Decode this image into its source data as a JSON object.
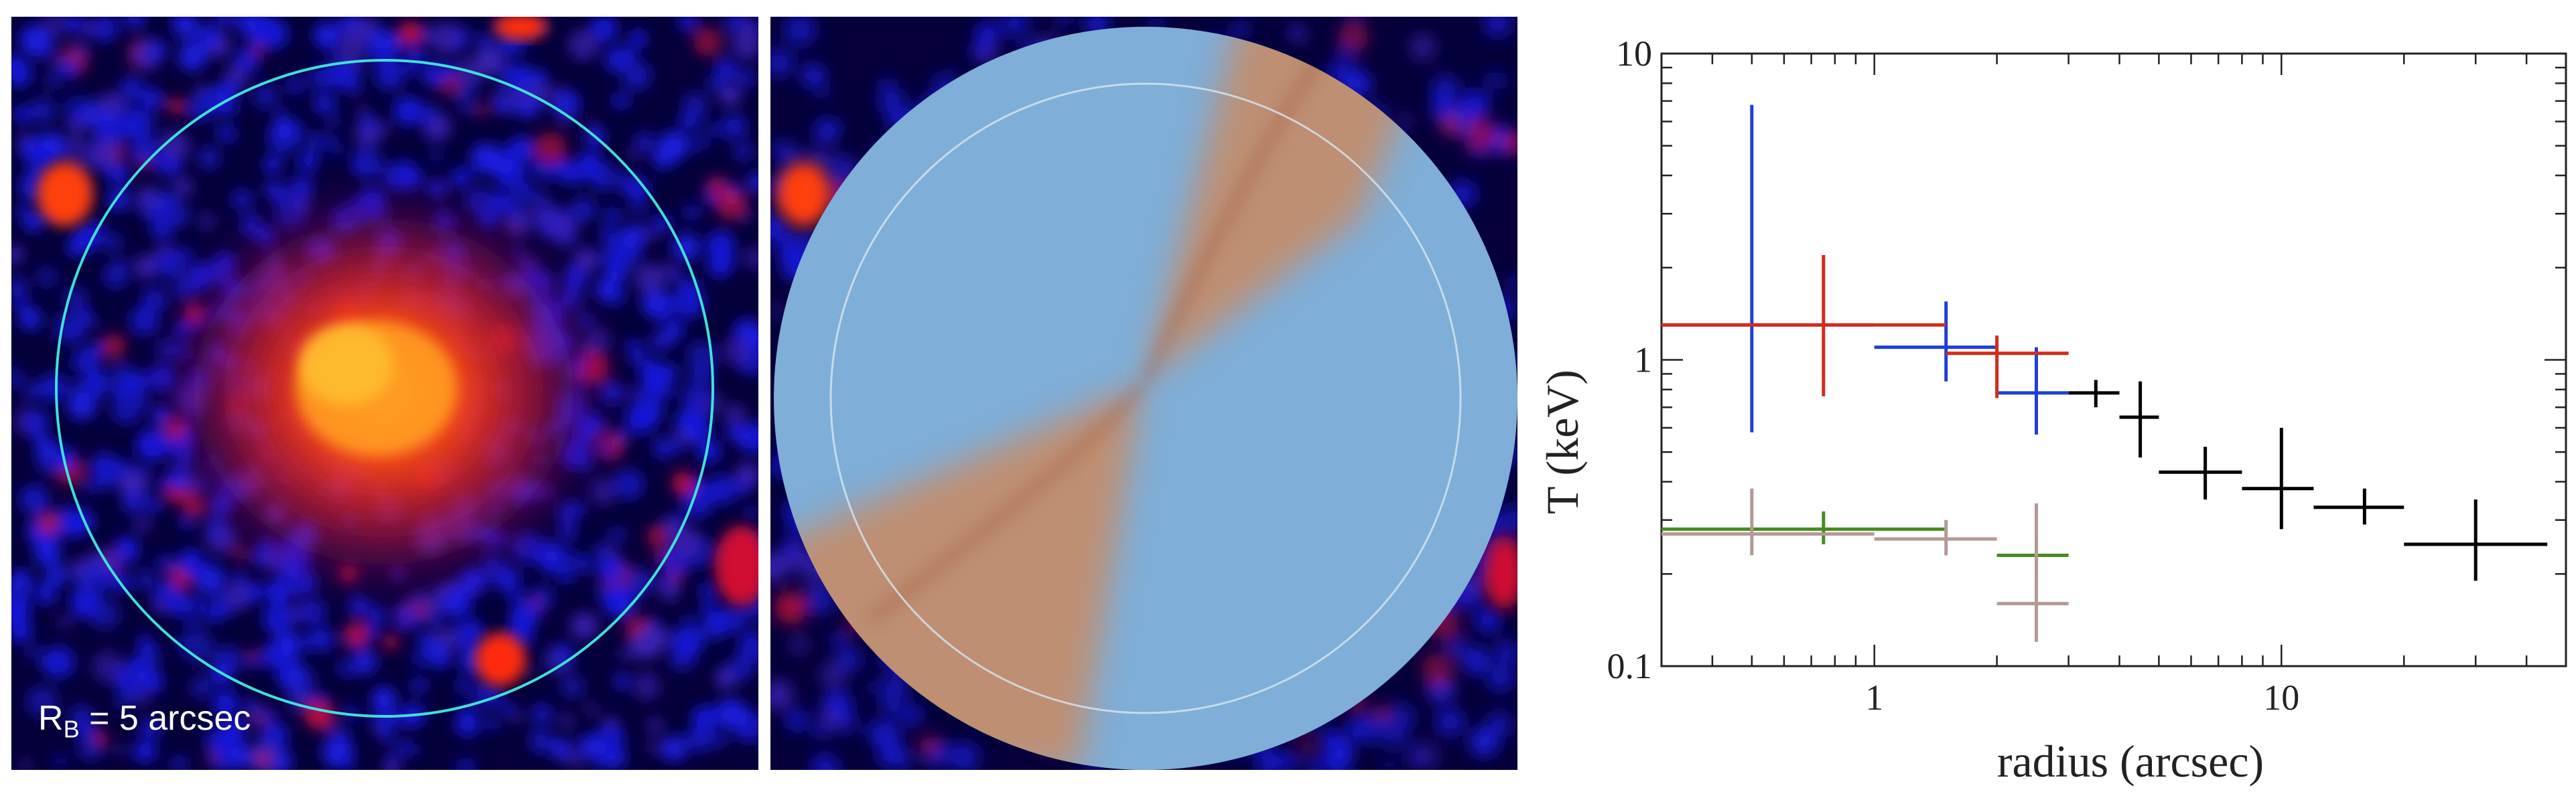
{
  "panels": {
    "left": {
      "caption_prefix": "R",
      "caption_sub": "B",
      "caption_rest": " = 5 arcsec",
      "circle_color": "#41e0d8"
    },
    "middle": {
      "circle_color": "#c9d9e6"
    }
  },
  "chart_data": {
    "type": "scatter",
    "xlabel": "radius (arcsec)",
    "ylabel": "T (keV)",
    "xscale": "log",
    "yscale": "log",
    "xlim": [
      0.3,
      50
    ],
    "ylim": [
      0.1,
      10
    ],
    "xticks": [
      "1",
      "10"
    ],
    "yticks": [
      "0.1",
      "1",
      "10"
    ],
    "grid": false,
    "series": [
      {
        "color": "#000000",
        "points": [
          {
            "x": 3.5,
            "x_lo": 3.0,
            "x_hi": 4.0,
            "y": 0.78,
            "y_lo": 0.7,
            "y_hi": 0.86
          },
          {
            "x": 4.5,
            "x_lo": 4.0,
            "x_hi": 5.0,
            "y": 0.65,
            "y_lo": 0.48,
            "y_hi": 0.85
          },
          {
            "x": 6.5,
            "x_lo": 5.0,
            "x_hi": 8.0,
            "y": 0.43,
            "y_lo": 0.35,
            "y_hi": 0.52
          },
          {
            "x": 10,
            "x_lo": 8.0,
            "x_hi": 12.0,
            "y": 0.38,
            "y_lo": 0.28,
            "y_hi": 0.6
          },
          {
            "x": 16,
            "x_lo": 12.0,
            "x_hi": 20.0,
            "y": 0.33,
            "y_lo": 0.29,
            "y_hi": 0.38
          },
          {
            "x": 30,
            "x_lo": 20.0,
            "x_hi": 45.0,
            "y": 0.25,
            "y_lo": 0.19,
            "y_hi": 0.35
          }
        ]
      },
      {
        "color": "#1f3fd6",
        "points": [
          {
            "x": 0.5,
            "x_lo": 0.3,
            "x_hi": 1.0,
            "y": 1.3,
            "y_lo": 0.58,
            "y_hi": 6.8
          },
          {
            "x": 1.5,
            "x_lo": 1.0,
            "x_hi": 2.0,
            "y": 1.1,
            "y_lo": 0.85,
            "y_hi": 1.55
          },
          {
            "x": 2.5,
            "x_lo": 2.0,
            "x_hi": 3.0,
            "y": 0.78,
            "y_lo": 0.57,
            "y_hi": 1.1
          }
        ]
      },
      {
        "color": "#d42b1e",
        "points": [
          {
            "x": 0.75,
            "x_lo": 0.3,
            "x_hi": 1.5,
            "y": 1.3,
            "y_lo": 0.76,
            "y_hi": 2.2
          },
          {
            "x": 2.0,
            "x_lo": 1.5,
            "x_hi": 3.0,
            "y": 1.05,
            "y_lo": 0.75,
            "y_hi": 1.2
          }
        ]
      },
      {
        "color": "#4a8a1e",
        "points": [
          {
            "x": 0.75,
            "x_lo": 0.3,
            "x_hi": 1.5,
            "y": 0.28,
            "y_lo": 0.25,
            "y_hi": 0.32
          },
          {
            "x": 2.5,
            "x_lo": 2.0,
            "x_hi": 3.0,
            "y": 0.23,
            "y_lo": 0.19,
            "y_hi": 0.27
          }
        ]
      },
      {
        "color": "#b39a96",
        "points": [
          {
            "x": 0.5,
            "x_lo": 0.3,
            "x_hi": 1.0,
            "y": 0.27,
            "y_lo": 0.23,
            "y_hi": 0.38
          },
          {
            "x": 1.5,
            "x_lo": 1.0,
            "x_hi": 2.0,
            "y": 0.26,
            "y_lo": 0.23,
            "y_hi": 0.3
          },
          {
            "x": 2.5,
            "x_lo": 2.0,
            "x_hi": 3.0,
            "y": 0.16,
            "y_lo": 0.12,
            "y_hi": 0.34
          }
        ]
      }
    ]
  }
}
